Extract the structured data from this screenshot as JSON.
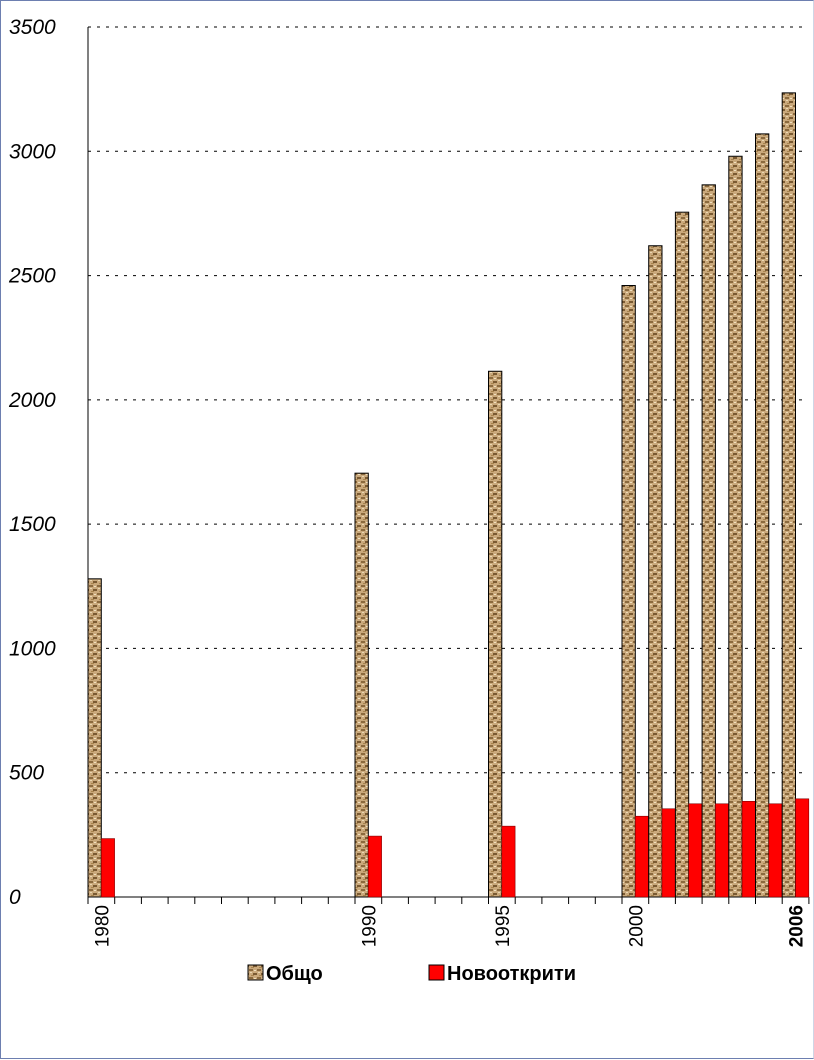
{
  "chart_data": {
    "type": "bar",
    "categories": [
      "1980",
      "",
      "",
      "",
      "",
      "",
      "",
      "",
      "",
      "",
      "1990",
      "",
      "",
      "",
      "",
      "1995",
      "",
      "",
      "",
      "",
      "2000",
      "",
      "",
      "",
      "",
      "",
      "2006"
    ],
    "series": [
      {
        "name": "Общо",
        "values": [
          1280,
          null,
          null,
          null,
          null,
          null,
          null,
          null,
          null,
          null,
          1705,
          null,
          null,
          null,
          null,
          2115,
          null,
          null,
          null,
          null,
          2460,
          2620,
          2755,
          2865,
          2980,
          3070,
          3235
        ],
        "color": "#c9a878",
        "pattern": "textured-tan"
      },
      {
        "name": "Новооткрити",
        "values": [
          235,
          null,
          null,
          null,
          null,
          null,
          null,
          null,
          null,
          null,
          245,
          null,
          null,
          null,
          null,
          285,
          null,
          null,
          null,
          null,
          325,
          355,
          375,
          375,
          385,
          375,
          395
        ],
        "color": "#ff0000"
      }
    ],
    "category_labels_shown": [
      {
        "index": 0,
        "text": "1980",
        "bold": false
      },
      {
        "index": 10,
        "text": "1990",
        "bold": false
      },
      {
        "index": 15,
        "text": "1995",
        "bold": false
      },
      {
        "index": 20,
        "text": "2000",
        "bold": false
      },
      {
        "index": 26,
        "text": "2006",
        "bold": true
      }
    ],
    "y_ticks": [
      "0",
      "500",
      "1000",
      "1500",
      "2000",
      "2500",
      "3000",
      "3500"
    ],
    "ylim": [
      0,
      3500
    ],
    "grid": "dotted horizontal",
    "legend_position": "bottom"
  }
}
